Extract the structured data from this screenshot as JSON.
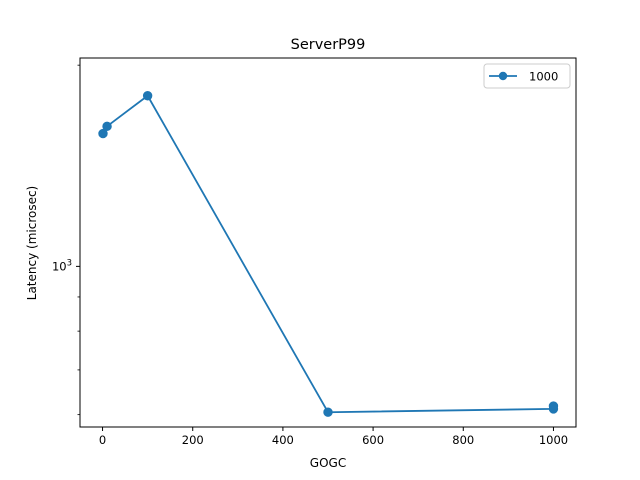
{
  "chart_data": {
    "type": "line",
    "title": "ServerP99",
    "xlabel": "GOGC",
    "ylabel": "Latency (microsec)",
    "xlim": [
      -50,
      1050
    ],
    "ylim": [
      575,
      2050
    ],
    "yscale": "log",
    "grid": false,
    "legend_position": "top-right",
    "x_ticks": [
      0,
      200,
      400,
      600,
      800,
      1000
    ],
    "x_tick_labels": [
      "0",
      "200",
      "400",
      "600",
      "800",
      "1000"
    ],
    "y_major_ticks": [
      1000
    ],
    "y_major_tick_labels": [
      "10^3"
    ],
    "y_minor_ticks": [
      600,
      700,
      800,
      900,
      2000
    ],
    "series": [
      {
        "name": "1000",
        "color": "#1f77b4",
        "marker": "circle",
        "x": [
          1,
          10,
          100,
          500,
          1000,
          1000
        ],
        "y": [
          1580,
          1620,
          1800,
          605,
          612,
          618
        ]
      }
    ]
  }
}
